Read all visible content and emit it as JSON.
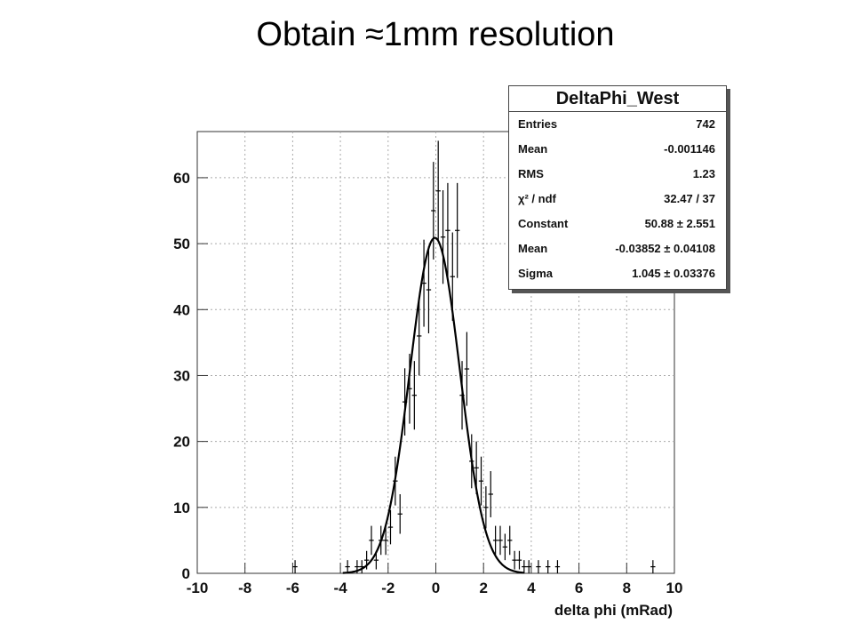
{
  "slide": {
    "title": "Obtain ≈1mm resolution"
  },
  "chart_data": {
    "type": "histogram",
    "title": "",
    "xlabel": "delta phi (mRad)",
    "ylabel": "",
    "xlim": [
      -10,
      10
    ],
    "ylim": [
      0,
      67
    ],
    "x_ticks": [
      -10,
      -8,
      -6,
      -4,
      -2,
      0,
      2,
      4,
      6,
      8,
      10
    ],
    "y_ticks": [
      0,
      10,
      20,
      30,
      40,
      50,
      60
    ],
    "grid": true,
    "bins": [
      {
        "x": -5.9,
        "y": 1,
        "err": 1
      },
      {
        "x": -3.7,
        "y": 1,
        "err": 1
      },
      {
        "x": -3.3,
        "y": 1,
        "err": 1
      },
      {
        "x": -3.1,
        "y": 1,
        "err": 1
      },
      {
        "x": -2.9,
        "y": 2,
        "err": 1.4
      },
      {
        "x": -2.7,
        "y": 5,
        "err": 2.2
      },
      {
        "x": -2.5,
        "y": 2,
        "err": 1.4
      },
      {
        "x": -2.3,
        "y": 5,
        "err": 2.2
      },
      {
        "x": -2.1,
        "y": 5,
        "err": 2.2
      },
      {
        "x": -1.9,
        "y": 7,
        "err": 2.6
      },
      {
        "x": -1.7,
        "y": 14,
        "err": 3.7
      },
      {
        "x": -1.5,
        "y": 9,
        "err": 3
      },
      {
        "x": -1.3,
        "y": 26,
        "err": 5.1
      },
      {
        "x": -1.1,
        "y": 28,
        "err": 5.3
      },
      {
        "x": -0.9,
        "y": 27,
        "err": 5.2
      },
      {
        "x": -0.7,
        "y": 36,
        "err": 6
      },
      {
        "x": -0.5,
        "y": 44,
        "err": 6.6
      },
      {
        "x": -0.3,
        "y": 43,
        "err": 6.6
      },
      {
        "x": -0.1,
        "y": 55,
        "err": 7.4
      },
      {
        "x": 0.1,
        "y": 58,
        "err": 7.6
      },
      {
        "x": 0.3,
        "y": 51,
        "err": 7.1
      },
      {
        "x": 0.5,
        "y": 52,
        "err": 7.2
      },
      {
        "x": 0.7,
        "y": 45,
        "err": 6.7
      },
      {
        "x": 0.9,
        "y": 52,
        "err": 7.2
      },
      {
        "x": 1.1,
        "y": 27,
        "err": 5.2
      },
      {
        "x": 1.3,
        "y": 31,
        "err": 5.6
      },
      {
        "x": 1.5,
        "y": 17,
        "err": 4.1
      },
      {
        "x": 1.7,
        "y": 16,
        "err": 4
      },
      {
        "x": 1.9,
        "y": 14,
        "err": 3.7
      },
      {
        "x": 2.1,
        "y": 10,
        "err": 3.2
      },
      {
        "x": 2.3,
        "y": 12,
        "err": 3.5
      },
      {
        "x": 2.5,
        "y": 5,
        "err": 2.2
      },
      {
        "x": 2.7,
        "y": 5,
        "err": 2.2
      },
      {
        "x": 2.9,
        "y": 4,
        "err": 2
      },
      {
        "x": 3.1,
        "y": 5,
        "err": 2.2
      },
      {
        "x": 3.3,
        "y": 2,
        "err": 1.4
      },
      {
        "x": 3.5,
        "y": 2,
        "err": 1.4
      },
      {
        "x": 3.7,
        "y": 1,
        "err": 1
      },
      {
        "x": 3.9,
        "y": 1,
        "err": 1
      },
      {
        "x": 4.3,
        "y": 1,
        "err": 1
      },
      {
        "x": 4.7,
        "y": 1,
        "err": 1
      },
      {
        "x": 5.1,
        "y": 1,
        "err": 1
      },
      {
        "x": 9.1,
        "y": 1,
        "err": 1
      }
    ],
    "fit": {
      "type": "gaussian",
      "constant": 50.88,
      "mean": -0.03852,
      "sigma": 1.045
    },
    "stats_box": {
      "title": "DeltaPhi_West",
      "placement": "top-right",
      "rows": [
        {
          "label": "Entries",
          "value": "742"
        },
        {
          "label": "Mean",
          "value": "-0.001146"
        },
        {
          "label": "RMS",
          "value": "1.23"
        },
        {
          "label_html": true,
          "label": "χ² / ndf",
          "value": "32.47 / 37"
        },
        {
          "label": "Constant",
          "value": "50.88  ± 2.551"
        },
        {
          "label": "Mean",
          "value": "-0.03852  ± 0.04108"
        },
        {
          "label": "Sigma",
          "value": "1.045  ± 0.03376"
        }
      ]
    }
  }
}
